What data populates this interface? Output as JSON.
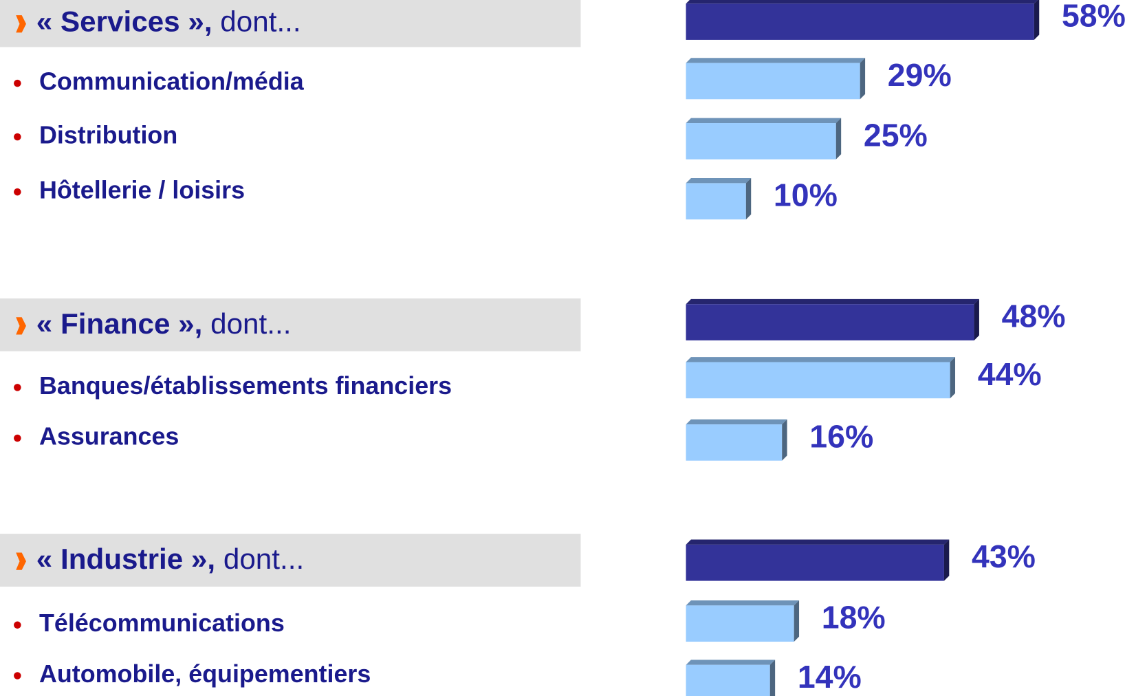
{
  "chart_data": {
    "type": "bar",
    "total_color": "#333399",
    "item_color": "#99ccff",
    "groups": [
      {
        "title_bold": "« Services »,",
        "title_rest": " dont...",
        "total": 58,
        "total_label": "58%",
        "categories": [
          "Communication/média",
          "Distribution",
          "Hôtellerie / loisirs"
        ],
        "values": [
          29,
          25,
          10
        ],
        "value_labels": [
          "29%",
          "25%",
          "10%"
        ]
      },
      {
        "title_bold": "« Finance »,",
        "title_rest": " dont...",
        "total": 48,
        "total_label": "48%",
        "categories": [
          "Banques/établissements financiers",
          "Assurances"
        ],
        "values": [
          44,
          16
        ],
        "value_labels": [
          "44%",
          "16%"
        ]
      },
      {
        "title_bold": "« Industrie »,",
        "title_rest": " dont...",
        "total": 43,
        "total_label": "43%",
        "categories": [
          "Télécommunications",
          "Automobile, équipementiers"
        ],
        "values": [
          18,
          14
        ],
        "value_labels": [
          "18%",
          "14%"
        ]
      }
    ]
  }
}
